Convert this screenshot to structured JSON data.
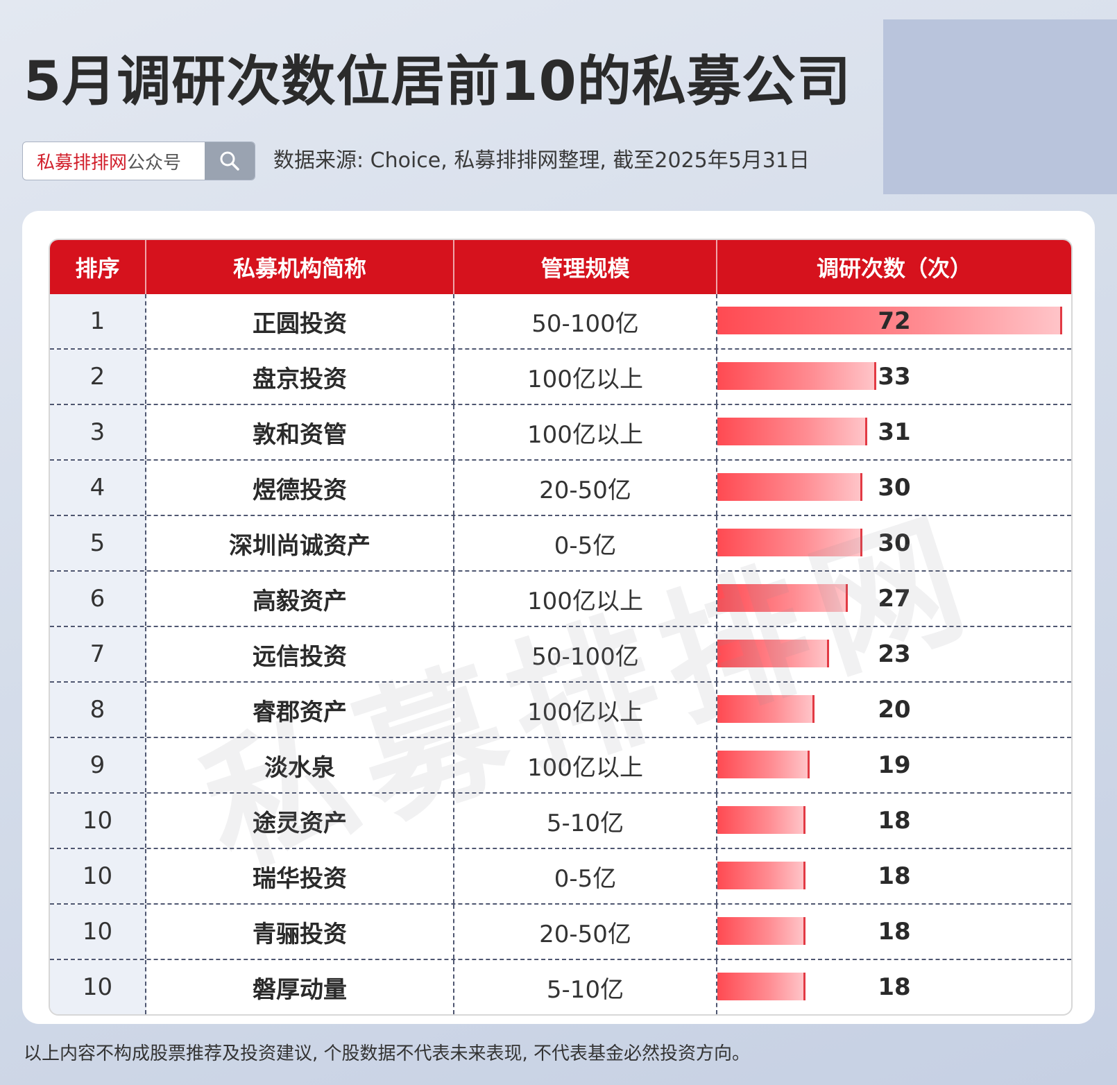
{
  "title": "5月调研次数位居前10的私募公司",
  "brand": {
    "highlight": "私募排排网",
    "suffix": "公众号",
    "search_icon": "search-icon"
  },
  "source": "数据来源: Choice, 私募排排网整理, 截至2025年5月31日",
  "watermark": "私募排排网",
  "footer": "以上内容不构成股票推荐及投资建议, 个股数据不代表未来表现, 不代表基金必然投资方向。",
  "colors": {
    "header": "#d6121d",
    "bar_start": "#ff4a52",
    "bar_end": "#ffc4c8",
    "brand_red": "#d11e2a"
  },
  "chart_data": {
    "type": "table",
    "columns": [
      "排序",
      "私募机构简称",
      "管理规模",
      "调研次数（次）"
    ],
    "max_value": 72,
    "rows": [
      {
        "rank": "1",
        "name": "正圆投资",
        "scale": "50-100亿",
        "count": 72
      },
      {
        "rank": "2",
        "name": "盘京投资",
        "scale": "100亿以上",
        "count": 33
      },
      {
        "rank": "3",
        "name": "敦和资管",
        "scale": "100亿以上",
        "count": 31
      },
      {
        "rank": "4",
        "name": "煜德投资",
        "scale": "20-50亿",
        "count": 30
      },
      {
        "rank": "5",
        "name": "深圳尚诚资产",
        "scale": "0-5亿",
        "count": 30
      },
      {
        "rank": "6",
        "name": "高毅资产",
        "scale": "100亿以上",
        "count": 27
      },
      {
        "rank": "7",
        "name": "远信投资",
        "scale": "50-100亿",
        "count": 23
      },
      {
        "rank": "8",
        "name": "睿郡资产",
        "scale": "100亿以上",
        "count": 20
      },
      {
        "rank": "9",
        "name": "淡水泉",
        "scale": "100亿以上",
        "count": 19
      },
      {
        "rank": "10",
        "name": "途灵资产",
        "scale": "5-10亿",
        "count": 18
      },
      {
        "rank": "10",
        "name": "瑞华投资",
        "scale": "0-5亿",
        "count": 18
      },
      {
        "rank": "10",
        "name": "青骊投资",
        "scale": "20-50亿",
        "count": 18
      },
      {
        "rank": "10",
        "name": "磐厚动量",
        "scale": "5-10亿",
        "count": 18
      }
    ]
  }
}
